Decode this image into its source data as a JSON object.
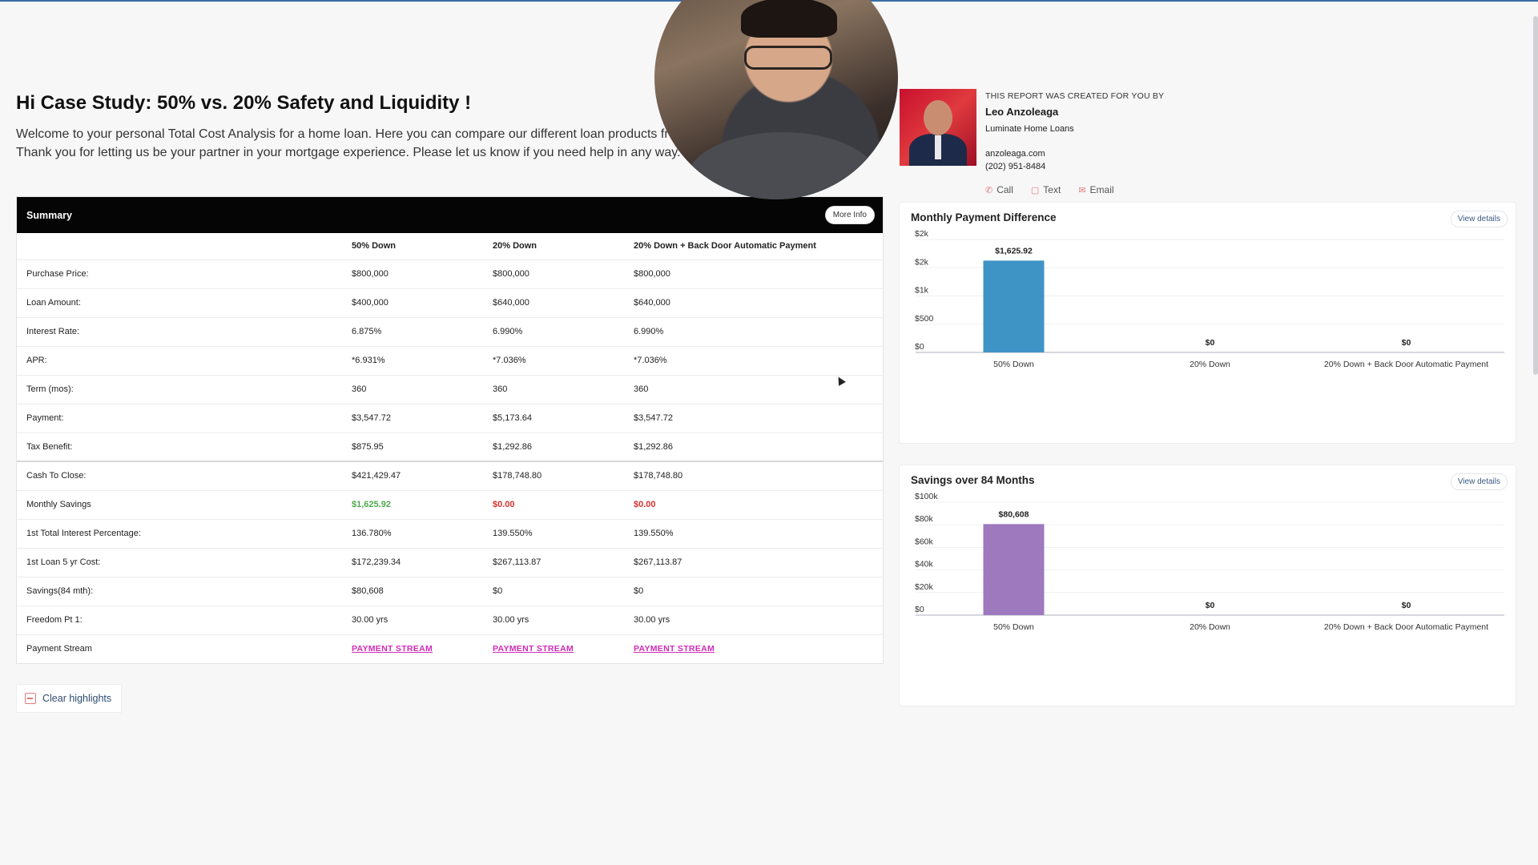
{
  "page": {
    "title": "Hi Case Study: 50% vs. 20% Safety and Liquidity !",
    "intro_line1": "Welcome to your personal Total Cost Analysis for a home loan. Here you can compare our different loan products fr",
    "intro_line2": "Thank you for letting us be your partner in your mortgage experience. Please let us know if you need help in any way."
  },
  "agent": {
    "kicker": "THIS REPORT WAS CREATED FOR YOU BY",
    "name": "Leo Anzoleaga",
    "company": "Luminate Home Loans",
    "website": "anzoleaga.com",
    "phone": "(202) 951-8484",
    "actions": {
      "call": "Call",
      "text": "Text",
      "email": "Email"
    }
  },
  "summary": {
    "title": "Summary",
    "more_info": "More Info",
    "columns": [
      "50% Down",
      "20% Down",
      "20% Down + Back Door Automatic Payment"
    ],
    "rows": [
      {
        "label": "Purchase Price:",
        "values": [
          "$800,000",
          "$800,000",
          "$800,000"
        ]
      },
      {
        "label": "Loan Amount:",
        "values": [
          "$400,000",
          "$640,000",
          "$640,000"
        ]
      },
      {
        "label": "Interest Rate:",
        "values": [
          "6.875%",
          "6.990%",
          "6.990%"
        ]
      },
      {
        "label": "APR:",
        "values": [
          "*6.931%",
          "*7.036%",
          "*7.036%"
        ]
      },
      {
        "label": "Term (mos):",
        "values": [
          "360",
          "360",
          "360"
        ]
      },
      {
        "label": "Payment:",
        "values": [
          "$3,547.72",
          "$5,173.64",
          "$3,547.72"
        ]
      },
      {
        "label": "Tax Benefit:",
        "values": [
          "$875.95",
          "$1,292.86",
          "$1,292.86"
        ]
      },
      {
        "label": "Cash To Close:",
        "values": [
          "$421,429.47",
          "$178,748.80",
          "$178,748.80"
        ]
      },
      {
        "label": "Monthly Savings",
        "values": [
          "$1,625.92",
          "$0.00",
          "$0.00"
        ]
      },
      {
        "label": "1st Total Interest Percentage:",
        "values": [
          "136.780%",
          "139.550%",
          "139.550%"
        ]
      },
      {
        "label": "1st Loan 5 yr Cost:",
        "values": [
          "$172,239.34",
          "$267,113.87",
          "$267,113.87"
        ]
      },
      {
        "label": "Savings(84 mth):",
        "values": [
          "$80,608",
          "$0",
          "$0"
        ]
      },
      {
        "label": "Freedom Pt 1:",
        "values": [
          "30.00 yrs",
          "30.00 yrs",
          "30.00 yrs"
        ]
      },
      {
        "label": "Payment Stream",
        "values": [
          "PAYMENT STREAM",
          "PAYMENT STREAM",
          "PAYMENT STREAM"
        ]
      }
    ]
  },
  "clear_highlights": "Clear highlights",
  "view_details": "View details",
  "colors": {
    "blue_bar": "#3f94c6",
    "purple_bar": "#9e79be",
    "savings_green": "#4caa4c",
    "zero_red": "#d3332e",
    "stream_pink": "#d12bb7"
  },
  "chart_data": [
    {
      "type": "bar",
      "title": "Monthly Payment Difference",
      "categories": [
        "50% Down",
        "20% Down",
        "20% Down + Back Door Automatic Payment"
      ],
      "values": [
        1625.92,
        0,
        0
      ],
      "data_labels": [
        "$1,625.92",
        "$0",
        "$0"
      ],
      "yticks": [
        0,
        500,
        1000,
        1500,
        2000
      ],
      "ytick_labels": [
        "$0",
        "$500",
        "$1k",
        "$2k",
        "$2k"
      ],
      "ylim": [
        0,
        2000
      ],
      "grid": true
    },
    {
      "type": "bar",
      "title": "Savings over 84 Months",
      "categories": [
        "50% Down",
        "20% Down",
        "20% Down + Back Door Automatic Payment"
      ],
      "values": [
        80608,
        0,
        0
      ],
      "data_labels": [
        "$80,608",
        "$0",
        "$0"
      ],
      "yticks": [
        0,
        20000,
        40000,
        60000,
        80000,
        100000
      ],
      "ytick_labels": [
        "$0",
        "$20k",
        "$40k",
        "$60k",
        "$80k",
        "$100k"
      ],
      "ylim": [
        0,
        100000
      ],
      "grid": true
    }
  ]
}
